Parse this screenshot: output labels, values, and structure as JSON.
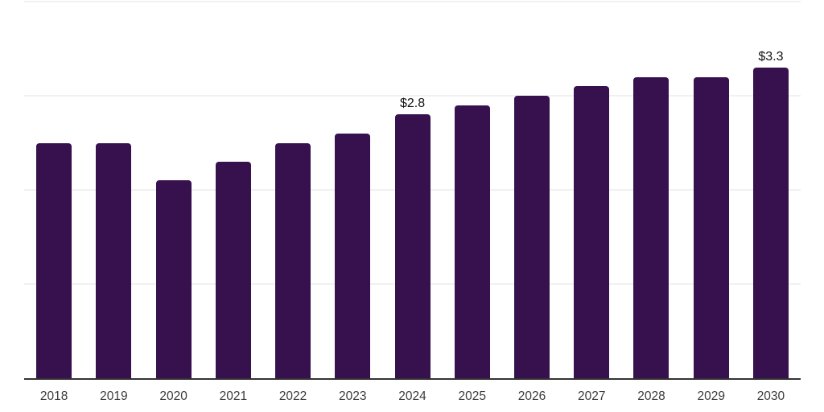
{
  "chart_data": {
    "type": "bar",
    "title": "",
    "xlabel": "",
    "ylabel": "",
    "categories": [
      "2018",
      "2019",
      "2020",
      "2021",
      "2022",
      "2023",
      "2024",
      "2025",
      "2026",
      "2027",
      "2028",
      "2029",
      "2030"
    ],
    "values": [
      2.5,
      2.5,
      2.1,
      2.3,
      2.5,
      2.6,
      2.8,
      2.9,
      3.0,
      3.1,
      3.2,
      3.2,
      3.3
    ],
    "labeled_points": [
      {
        "category": "2024",
        "label": "$2.8"
      },
      {
        "category": "2030",
        "label": "$3.3"
      }
    ],
    "ylim": [
      0,
      4
    ],
    "gridline_values": [
      1,
      2,
      3,
      4
    ],
    "grid": "horizontal-only",
    "legend": "none",
    "colors": {
      "bar": "#36114E",
      "gridline": "#f1f1f1",
      "axis_line": "#333333",
      "tick_label": "#3b3b3b",
      "value_label": "#111111",
      "background": "#ffffff"
    }
  }
}
